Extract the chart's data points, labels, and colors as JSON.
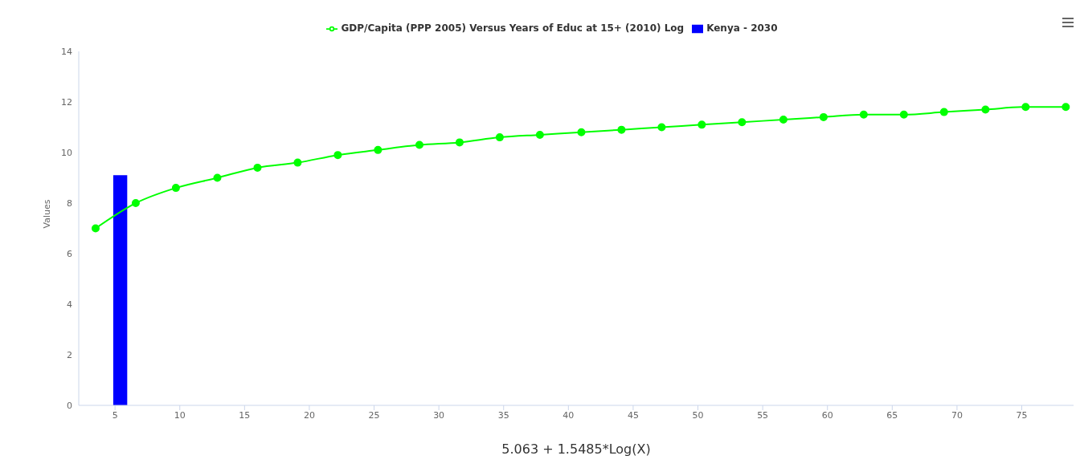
{
  "chart_data": {
    "type": "line",
    "xlabel": "5.063 + 1.5485*Log(X)",
    "ylabel": "Values",
    "series": [
      {
        "name": "GDP/Capita (PPP 2005) Versus Years of Educ at 15+ (2010) Log",
        "color": "#00ff00",
        "x": [
          3.5,
          6.6,
          9.7,
          12.9,
          16.0,
          19.1,
          22.2,
          25.3,
          28.5,
          31.6,
          34.7,
          37.8,
          41.0,
          44.1,
          47.2,
          50.3,
          53.4,
          56.6,
          59.7,
          62.8,
          65.9,
          69.0,
          72.2,
          75.3,
          78.4
        ],
        "values": [
          7.0,
          8.0,
          8.6,
          9.0,
          9.4,
          9.6,
          9.9,
          10.1,
          10.3,
          10.4,
          10.6,
          10.7,
          10.8,
          10.9,
          11.0,
          11.1,
          11.2,
          11.3,
          11.4,
          11.5,
          11.5,
          11.6,
          11.7,
          11.8,
          11.8
        ]
      },
      {
        "type": "bar",
        "name": "Kenya - 2030",
        "color": "#0000ff",
        "x": [
          5.4
        ],
        "values": [
          9.1
        ]
      }
    ],
    "xlim": [
      2.2,
      79
    ],
    "xticks": [
      5,
      10,
      15,
      20,
      25,
      30,
      35,
      40,
      45,
      50,
      55,
      60,
      65,
      70,
      75
    ],
    "ylim": [
      0,
      14
    ],
    "yticks": [
      0,
      2,
      4,
      6,
      8,
      10,
      12,
      14
    ],
    "grid": false,
    "legend": "top",
    "marker": "circle",
    "line_style": "solid"
  }
}
